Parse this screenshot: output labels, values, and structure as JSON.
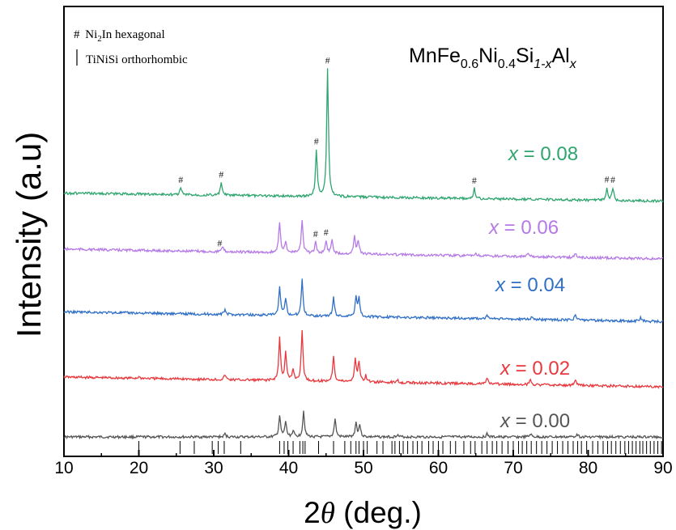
{
  "chart_data": {
    "type": "line",
    "xlabel_prefix": "2",
    "xlabel_theta": "θ",
    "xlabel_suffix": " (deg.)",
    "ylabel": "Intensity (a.u)",
    "xlim": [
      10,
      90
    ],
    "xticks": [
      "10",
      "20",
      "30",
      "40",
      "50",
      "60",
      "70",
      "80",
      "90"
    ],
    "composition": {
      "parts": [
        "MnFe",
        "0.6",
        "Ni",
        "0.4",
        "Si",
        "1-x",
        "Al",
        "x"
      ]
    },
    "legend": [
      {
        "symbol": "#",
        "text_pre": "Ni",
        "text_sub": "2",
        "text_post": "In hexagonal"
      },
      {
        "symbol": "|",
        "text": "TiNiSi orthorhombic"
      }
    ],
    "series": [
      {
        "x_symbol": "x",
        "x_value": " = 0.00",
        "color": "#555555",
        "baseline": 0.0,
        "slope": 0.0,
        "peaks": [
          [
            31.5,
            0.06
          ],
          [
            38.8,
            0.42
          ],
          [
            39.6,
            0.3
          ],
          [
            40.6,
            0.12
          ],
          [
            42.0,
            0.52
          ],
          [
            46.2,
            0.36
          ],
          [
            49.0,
            0.28
          ],
          [
            49.5,
            0.24
          ],
          [
            54.5,
            0.05
          ],
          [
            66.5,
            0.06
          ],
          [
            72.3,
            0.06
          ],
          [
            78.5,
            0.07
          ]
        ]
      },
      {
        "x_symbol": "x",
        "x_value": " = 0.02",
        "color": "#e8383d",
        "baseline": 1.0,
        "slope": 0.0,
        "peaks": [
          [
            20.0,
            0.03
          ],
          [
            31.5,
            0.1
          ],
          [
            38.8,
            0.85
          ],
          [
            39.6,
            0.55
          ],
          [
            40.6,
            0.22
          ],
          [
            41.8,
            0.98
          ],
          [
            46.0,
            0.52
          ],
          [
            48.9,
            0.45
          ],
          [
            49.4,
            0.4
          ],
          [
            50.3,
            0.12
          ],
          [
            54.5,
            0.06
          ],
          [
            66.5,
            0.12
          ],
          [
            72.3,
            0.1
          ],
          [
            78.3,
            0.12
          ]
        ]
      },
      {
        "x_symbol": "x",
        "x_value": " = 0.04",
        "color": "#2f6fc6",
        "baseline": 2.3,
        "slope": 0.0,
        "peaks": [
          [
            31.5,
            0.1
          ],
          [
            38.8,
            0.55
          ],
          [
            39.6,
            0.35
          ],
          [
            41.8,
            0.72
          ],
          [
            46.0,
            0.38
          ],
          [
            49.0,
            0.4
          ],
          [
            49.4,
            0.36
          ],
          [
            66.5,
            0.07
          ],
          [
            72.5,
            0.07
          ],
          [
            78.3,
            0.12
          ],
          [
            87.0,
            0.08
          ]
        ]
      },
      {
        "x_symbol": "x",
        "x_value": " = 0.06",
        "color": "#b57ae6",
        "baseline": 3.55,
        "slope": 0.0,
        "peaks": [
          [
            31.2,
            0.1
          ],
          [
            38.8,
            0.62
          ],
          [
            39.6,
            0.22
          ],
          [
            41.8,
            0.65
          ],
          [
            43.6,
            0.22
          ],
          [
            45.0,
            0.25
          ],
          [
            45.8,
            0.28
          ],
          [
            48.8,
            0.35
          ],
          [
            49.3,
            0.26
          ],
          [
            65.0,
            0.05
          ],
          [
            72.0,
            0.06
          ],
          [
            78.3,
            0.08
          ]
        ]
      },
      {
        "x_symbol": "x",
        "x_value": " = 0.08",
        "color": "#2ea56f",
        "baseline": 4.7,
        "slope": 0.0,
        "peaks": [
          [
            25.6,
            0.14
          ],
          [
            31.0,
            0.25
          ],
          [
            43.7,
            0.92
          ],
          [
            45.2,
            2.55
          ],
          [
            64.8,
            0.2
          ],
          [
            82.5,
            0.25
          ],
          [
            83.3,
            0.25
          ]
        ]
      }
    ],
    "hash_marks": [
      {
        "series": 3,
        "x": 30.8
      },
      {
        "series": 3,
        "x": 43.6
      },
      {
        "series": 3,
        "x": 45.0
      },
      {
        "series": 4,
        "x": 25.6
      },
      {
        "series": 4,
        "x": 31.0
      },
      {
        "series": 4,
        "x": 43.7
      },
      {
        "series": 4,
        "x": 45.2
      },
      {
        "series": 4,
        "x": 64.8
      },
      {
        "series": 4,
        "x": 82.5
      },
      {
        "series": 4,
        "x": 83.3
      }
    ],
    "ref_ticks": [
      20.0,
      25.5,
      27.4,
      29.8,
      30.6,
      31.4,
      33.6,
      38.8,
      39.4,
      39.9,
      40.6,
      41.5,
      41.9,
      42.2,
      44.0,
      46.0,
      47.5,
      48.3,
      49.0,
      49.4,
      50.0,
      50.5,
      51.8,
      52.6,
      53.8,
      54.2,
      54.8,
      55.3,
      55.9,
      56.6,
      57.2,
      57.8,
      58.7,
      59.3,
      60.0,
      60.6,
      61.6,
      62.3,
      63.4,
      64.3,
      64.9,
      65.8,
      66.5,
      67.2,
      67.8,
      68.5,
      69.3,
      70.0,
      70.7,
      71.2,
      71.8,
      72.4,
      73.1,
      73.8,
      74.5,
      75.2,
      75.9,
      76.6,
      77.3,
      78.0,
      78.6,
      79.1,
      79.8,
      80.6,
      81.3,
      82.0,
      82.6,
      83.1,
      83.7,
      84.3,
      84.9,
      85.4,
      85.9,
      86.4,
      86.9,
      87.3,
      87.8,
      88.3,
      88.8,
      89.3,
      89.8
    ]
  }
}
